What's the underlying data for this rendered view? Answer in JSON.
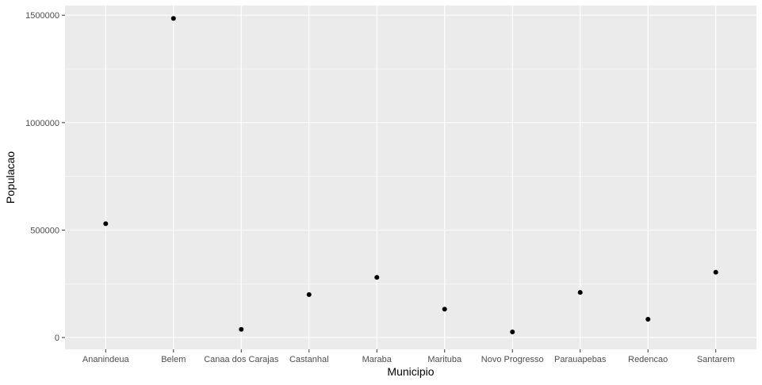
{
  "chart_data": {
    "type": "scatter",
    "categories": [
      "Ananindeua",
      "Belem",
      "Canaa dos Carajas",
      "Castanhal",
      "Maraba",
      "Marituba",
      "Novo Progresso",
      "Parauapebas",
      "Redencao",
      "Santarem"
    ],
    "series": [
      {
        "values": [
          530000,
          1485000,
          38000,
          200000,
          280000,
          132000,
          26000,
          210000,
          85000,
          304000
        ]
      }
    ],
    "xlabel": "Municipio",
    "ylabel": "Populacao",
    "ylim": [
      -55000,
      1545000
    ],
    "yticks": [
      0,
      500000,
      1000000,
      1500000
    ],
    "ytick_labels": [
      "0",
      "500000",
      "1000000",
      "1500000"
    ],
    "grid": true,
    "colors": {
      "panel": "#ebebeb",
      "grid_major": "#ffffff",
      "point": "#000000",
      "tick_text": "#4d4d4d"
    }
  }
}
